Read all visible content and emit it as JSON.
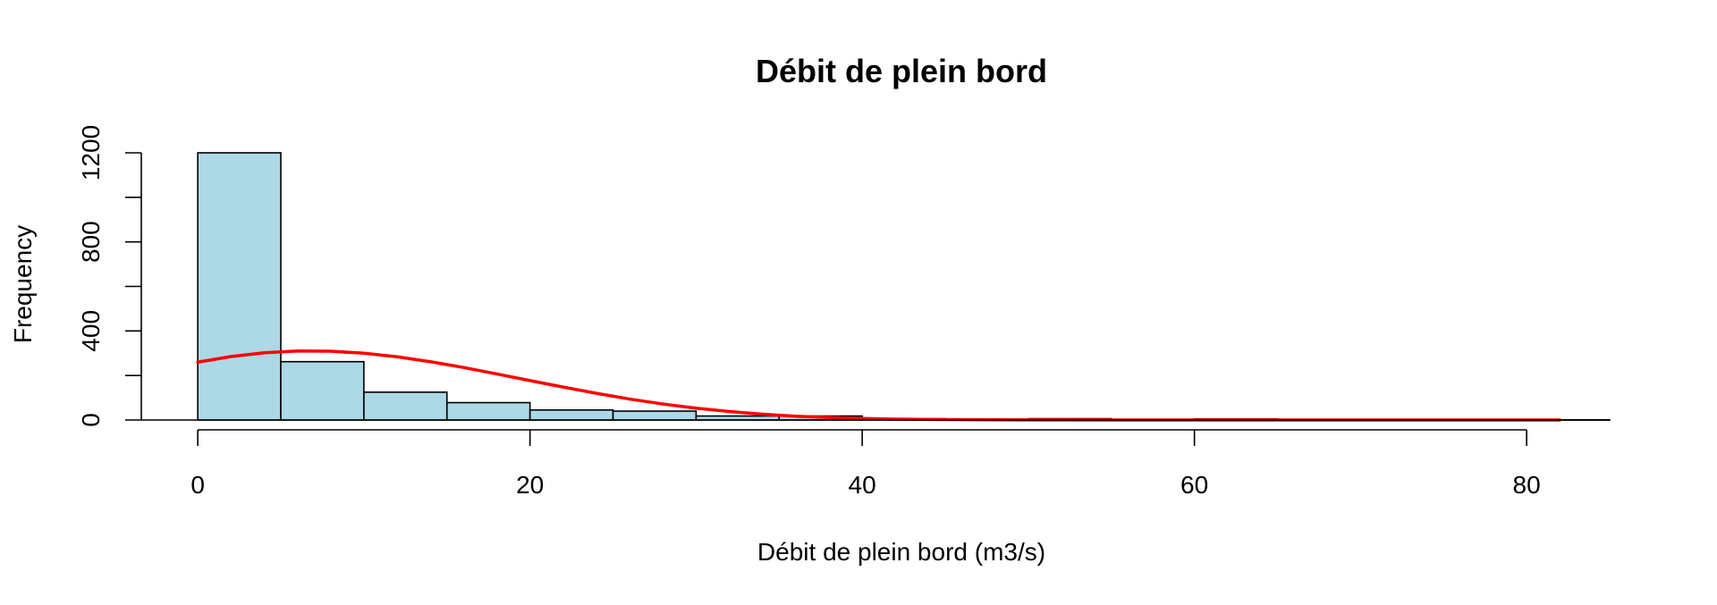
{
  "chart_data": {
    "type": "bar",
    "title": "Débit de plein bord",
    "xlabel": "Débit de plein bord (m3/s)",
    "ylabel": "Frequency",
    "bins": [
      {
        "from": 0,
        "to": 5,
        "count": 1200
      },
      {
        "from": 5,
        "to": 10,
        "count": 262
      },
      {
        "from": 10,
        "to": 15,
        "count": 125
      },
      {
        "from": 15,
        "to": 20,
        "count": 78
      },
      {
        "from": 20,
        "to": 25,
        "count": 45
      },
      {
        "from": 25,
        "to": 30,
        "count": 40
      },
      {
        "from": 30,
        "to": 35,
        "count": 18
      },
      {
        "from": 35,
        "to": 40,
        "count": 18
      },
      {
        "from": 40,
        "to": 45,
        "count": 6
      },
      {
        "from": 45,
        "to": 50,
        "count": 4
      },
      {
        "from": 50,
        "to": 55,
        "count": 6
      },
      {
        "from": 55,
        "to": 60,
        "count": 2
      },
      {
        "from": 60,
        "to": 65,
        "count": 5
      },
      {
        "from": 65,
        "to": 70,
        "count": 2
      },
      {
        "from": 70,
        "to": 75,
        "count": 1
      },
      {
        "from": 75,
        "to": 80,
        "count": 1
      },
      {
        "from": 80,
        "to": 85,
        "count": 1
      }
    ],
    "bar_color": "#add8e6",
    "bar_border_color": "#000000",
    "overlay_curve": {
      "color": "#ff0000",
      "points": [
        {
          "x": 0,
          "y": 260
        },
        {
          "x": 2,
          "y": 285
        },
        {
          "x": 4,
          "y": 302
        },
        {
          "x": 6,
          "y": 310
        },
        {
          "x": 8,
          "y": 309
        },
        {
          "x": 10,
          "y": 300
        },
        {
          "x": 12,
          "y": 284
        },
        {
          "x": 14,
          "y": 262
        },
        {
          "x": 16,
          "y": 236
        },
        {
          "x": 18,
          "y": 207
        },
        {
          "x": 20,
          "y": 177
        },
        {
          "x": 22,
          "y": 148
        },
        {
          "x": 24,
          "y": 120
        },
        {
          "x": 26,
          "y": 94
        },
        {
          "x": 28,
          "y": 72
        },
        {
          "x": 30,
          "y": 53
        },
        {
          "x": 32,
          "y": 38
        },
        {
          "x": 34,
          "y": 26
        },
        {
          "x": 36,
          "y": 17
        },
        {
          "x": 38,
          "y": 11
        },
        {
          "x": 40,
          "y": 7
        },
        {
          "x": 42,
          "y": 4
        },
        {
          "x": 44,
          "y": 2.5
        },
        {
          "x": 46,
          "y": 1.5
        },
        {
          "x": 50,
          "y": 0.5
        },
        {
          "x": 55,
          "y": 0.1
        },
        {
          "x": 60,
          "y": 0
        },
        {
          "x": 70,
          "y": 0
        },
        {
          "x": 82,
          "y": 0
        }
      ]
    },
    "x_ticks": [
      0,
      20,
      40,
      60,
      80
    ],
    "x_tick_labels": [
      "0",
      "20",
      "40",
      "60",
      "80"
    ],
    "y_ticks": [
      0,
      200,
      400,
      600,
      800,
      1000,
      1200
    ],
    "y_tick_labels": [
      "0",
      "",
      "400",
      "",
      "800",
      "",
      "1200"
    ],
    "xlim": [
      -3.4,
      85
    ],
    "ylim": [
      0,
      1200
    ],
    "grid": false,
    "legend": "none"
  }
}
